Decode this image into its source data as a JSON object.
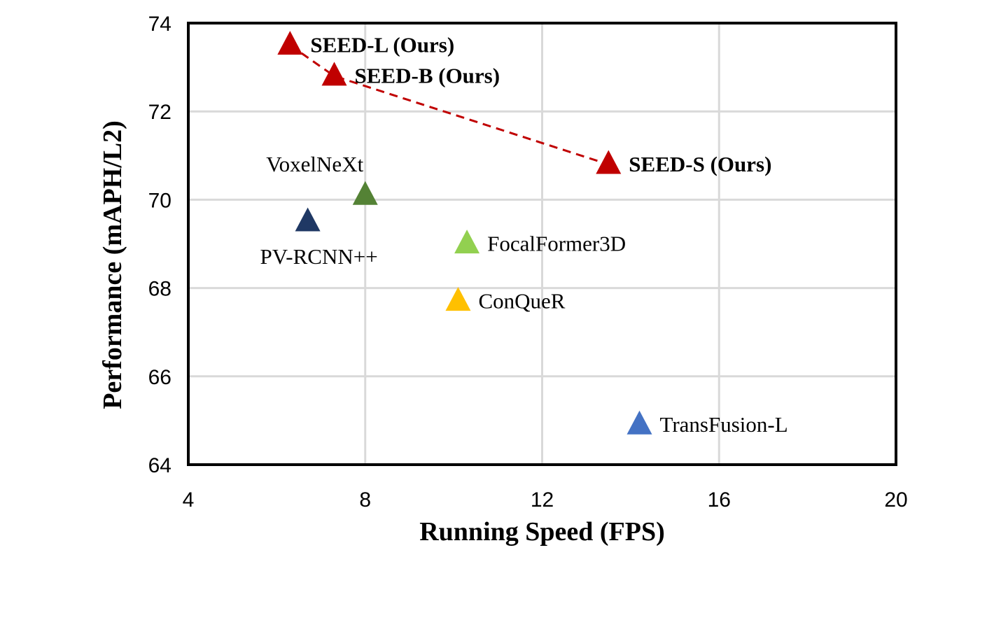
{
  "chart_data": {
    "type": "scatter",
    "title": "",
    "xlabel": "Running Speed (FPS)",
    "ylabel": "Performance (mAPH/L2)",
    "xlim": [
      4,
      20
    ],
    "ylim": [
      64,
      74
    ],
    "xticks": [
      4,
      8,
      12,
      16,
      20
    ],
    "yticks": [
      64,
      66,
      68,
      70,
      72,
      74
    ],
    "grid": true,
    "points": [
      {
        "name": "SEED-L (Ours)",
        "x": 6.3,
        "y": 73.5,
        "color": "#C00000",
        "bold": true,
        "label_side": "right"
      },
      {
        "name": "SEED-B (Ours)",
        "x": 7.3,
        "y": 72.8,
        "color": "#C00000",
        "bold": true,
        "label_side": "right"
      },
      {
        "name": "SEED-S (Ours)",
        "x": 13.5,
        "y": 70.8,
        "color": "#C00000",
        "bold": true,
        "label_side": "right"
      },
      {
        "name": "VoxelNeXt",
        "x": 8.0,
        "y": 70.1,
        "color": "#548235",
        "bold": false,
        "label_side": "above"
      },
      {
        "name": "PV-RCNN++",
        "x": 6.7,
        "y": 69.5,
        "color": "#1F3864",
        "bold": false,
        "label_side": "below"
      },
      {
        "name": "FocalFormer3D",
        "x": 10.3,
        "y": 69.0,
        "color": "#92D050",
        "bold": false,
        "label_side": "right"
      },
      {
        "name": "ConQueR",
        "x": 10.1,
        "y": 67.7,
        "color": "#FFC000",
        "bold": false,
        "label_side": "right"
      },
      {
        "name": "TransFusion-L",
        "x": 14.2,
        "y": 64.9,
        "color": "#4472C4",
        "bold": false,
        "label_side": "right"
      }
    ],
    "trend_line": {
      "style": "dashed",
      "color": "#C00000",
      "points": [
        [
          6.3,
          73.5
        ],
        [
          7.3,
          72.8
        ],
        [
          13.5,
          70.8
        ]
      ]
    }
  }
}
